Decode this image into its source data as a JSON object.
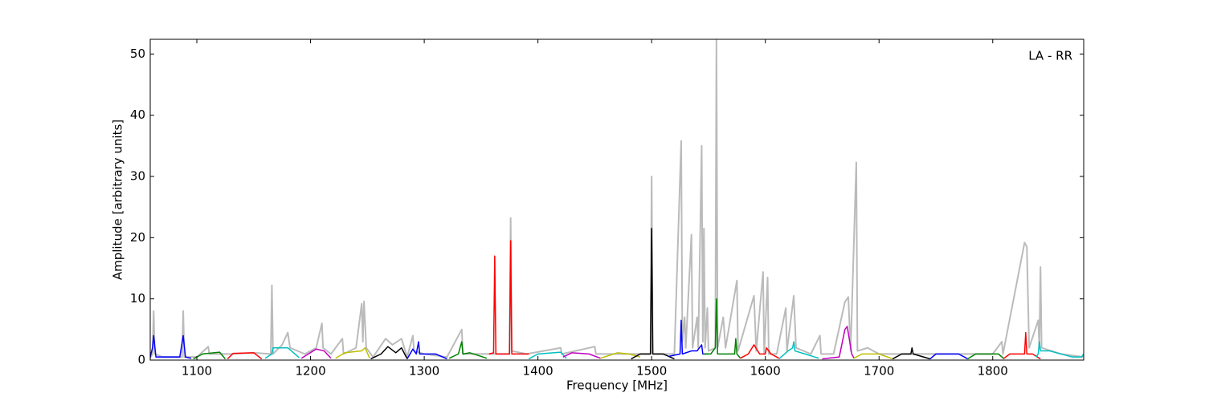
{
  "chart_data": {
    "type": "line",
    "annotation": "LA - RR",
    "xlabel": "Frequency [MHz]",
    "ylabel": "Amplitude [arbitrary units]",
    "xlim": [
      1059,
      1880
    ],
    "ylim": [
      0,
      52.4
    ],
    "xticks": [
      1100,
      1200,
      1300,
      1400,
      1500,
      1600,
      1700,
      1800
    ],
    "yticks": [
      0,
      10,
      20,
      30,
      40,
      50
    ],
    "series": [
      {
        "color": "#bbbbbb",
        "x": [
          1059,
          1061,
          1062,
          1063,
          1070,
          1087,
          1088,
          1089,
          1100,
          1110,
          1111,
          1130,
          1150,
          1165,
          1166,
          1167,
          1175,
          1180,
          1182,
          1195,
          1205,
          1210,
          1211,
          1218,
          1228,
          1229,
          1240,
          1245,
          1246,
          1247,
          1249,
          1255,
          1266,
          1272,
          1280,
          1285,
          1290,
          1291,
          1300,
          1320,
          1333,
          1334,
          1355,
          1375,
          1376,
          1377,
          1390,
          1420,
          1421,
          1450,
          1451,
          1480,
          1499,
          1500,
          1501,
          1520,
          1526,
          1527,
          1529,
          1530,
          1535,
          1536,
          1540,
          1541,
          1544,
          1545,
          1546,
          1547,
          1549,
          1550,
          1556,
          1557,
          1558,
          1563,
          1565,
          1575,
          1576,
          1590,
          1592,
          1598,
          1599,
          1602,
          1603,
          1610,
          1618,
          1619,
          1625,
          1627,
          1640,
          1648,
          1649,
          1660,
          1670,
          1673,
          1675,
          1680,
          1681,
          1690,
          1700,
          1740,
          1800,
          1808,
          1809,
          1828,
          1830,
          1832,
          1840,
          1841,
          1842,
          1843,
          1860,
          1880
        ],
        "values": [
          0.3,
          1,
          8,
          1,
          0.5,
          0.5,
          8,
          0.5,
          0.5,
          2.2,
          1,
          1,
          1.2,
          1,
          12.2,
          1,
          2.5,
          4.5,
          2,
          1,
          2,
          6,
          2,
          1,
          3.5,
          1,
          2,
          9.2,
          3,
          9.6,
          2,
          0.5,
          3.5,
          2.5,
          3.5,
          0.5,
          4,
          1.5,
          1,
          0.5,
          5,
          1,
          1,
          1,
          23.2,
          1.5,
          1,
          2,
          1,
          2.2,
          1,
          1,
          1,
          30,
          1,
          1,
          35.8,
          3,
          7,
          2,
          20.5,
          2,
          7,
          2,
          35,
          3,
          21.5,
          2,
          8.5,
          1.5,
          2,
          52.4,
          2,
          7,
          2,
          13,
          1.5,
          10.5,
          1.5,
          14.4,
          1,
          13.5,
          1,
          1,
          8.5,
          1.5,
          10.5,
          2,
          1,
          4,
          1,
          1,
          9.5,
          10.3,
          1.5,
          32.3,
          1.5,
          2,
          1,
          1,
          1,
          3,
          1,
          19.2,
          18.5,
          2,
          6.5,
          2,
          15.2,
          2,
          1,
          0.5
        ]
      },
      {
        "color": "#0000ff",
        "x": [
          1059,
          1061,
          1062,
          1064,
          1085,
          1088,
          1090,
          1095
        ],
        "values": [
          0.5,
          2,
          4,
          0.5,
          0.5,
          4,
          0.5,
          0.3
        ]
      },
      {
        "color": "#008000",
        "x": [
          1097,
          1105,
          1120,
          1125
        ],
        "values": [
          0.2,
          1,
          1.3,
          0.2
        ]
      },
      {
        "color": "#ff0000",
        "x": [
          1127,
          1132,
          1150,
          1157
        ],
        "values": [
          0.2,
          1.1,
          1.2,
          0.2
        ]
      },
      {
        "color": "#00bfbf",
        "x": [
          1160,
          1166,
          1167,
          1175,
          1180,
          1190
        ],
        "values": [
          0.3,
          1,
          2,
          2,
          2,
          0.4
        ]
      },
      {
        "color": "#bf00bf",
        "x": [
          1192,
          1205,
          1212,
          1218
        ],
        "values": [
          0.3,
          1.8,
          1.5,
          0.3
        ]
      },
      {
        "color": "#bfbf00",
        "x": [
          1222,
          1230,
          1245,
          1248,
          1252
        ],
        "values": [
          0.3,
          1.2,
          1.5,
          2,
          0.3
        ]
      },
      {
        "color": "#000000",
        "x": [
          1253,
          1262,
          1268,
          1275,
          1280,
          1285
        ],
        "values": [
          0.2,
          1,
          2.2,
          1.2,
          2,
          0.2
        ]
      },
      {
        "color": "#0000ff",
        "x": [
          1285,
          1290,
          1293,
          1295,
          1296,
          1310,
          1320
        ],
        "values": [
          0.2,
          1.8,
          1,
          3,
          1,
          1,
          0.2
        ]
      },
      {
        "color": "#008000",
        "x": [
          1322,
          1330,
          1333,
          1334,
          1340,
          1355
        ],
        "values": [
          0.3,
          1,
          3,
          1,
          1.2,
          0.3
        ]
      },
      {
        "color": "#ff0000",
        "x": [
          1357,
          1361,
          1362,
          1363,
          1375,
          1376,
          1377,
          1392
        ],
        "values": [
          1,
          1.2,
          17,
          1,
          1,
          19.5,
          1,
          1
        ]
      },
      {
        "color": "#00bfbf",
        "x": [
          1392,
          1400,
          1420,
          1425
        ],
        "values": [
          0.2,
          1,
          1.3,
          0.3
        ]
      },
      {
        "color": "#bf00bf",
        "x": [
          1422,
          1430,
          1445,
          1455
        ],
        "values": [
          0.5,
          1.2,
          1,
          0.3
        ]
      },
      {
        "color": "#bfbf00",
        "x": [
          1455,
          1470,
          1480,
          1490
        ],
        "values": [
          0.3,
          1.2,
          1,
          0.5
        ]
      },
      {
        "color": "#000000",
        "x": [
          1482,
          1490,
          1499,
          1500,
          1501,
          1510,
          1520
        ],
        "values": [
          0.2,
          1,
          1,
          21.5,
          1,
          1,
          0.2
        ]
      },
      {
        "color": "#0000ff",
        "x": [
          1515,
          1525,
          1526,
          1527,
          1535,
          1540,
          1544,
          1545,
          1550
        ],
        "values": [
          0.6,
          1,
          6.5,
          1,
          1.5,
          1.5,
          2.5,
          1,
          1
        ]
      },
      {
        "color": "#008000",
        "x": [
          1545,
          1552,
          1556,
          1557,
          1558,
          1565,
          1573,
          1574,
          1575,
          1578
        ],
        "values": [
          1,
          1,
          2,
          10,
          1,
          1,
          1,
          3.5,
          1,
          0.3
        ]
      },
      {
        "color": "#ff0000",
        "x": [
          1578,
          1585,
          1590,
          1595,
          1600,
          1601,
          1605,
          1612
        ],
        "values": [
          0.3,
          1,
          2.5,
          1,
          1,
          2,
          1,
          0.3
        ]
      },
      {
        "color": "#00bfbf",
        "x": [
          1612,
          1620,
          1624,
          1625,
          1626,
          1635,
          1647
        ],
        "values": [
          0.2,
          1.5,
          2,
          3,
          1.5,
          1,
          0.3
        ]
      },
      {
        "color": "#bf00bf",
        "x": [
          1650,
          1665,
          1670,
          1672,
          1676,
          1678
        ],
        "values": [
          0.2,
          0.5,
          5,
          5.5,
          1,
          0.3
        ]
      },
      {
        "color": "#bfbf00",
        "x": [
          1678,
          1685,
          1700,
          1712
        ],
        "values": [
          0.3,
          1,
          1,
          0.2
        ]
      },
      {
        "color": "#000000",
        "x": [
          1712,
          1720,
          1728,
          1729,
          1730,
          1745
        ],
        "values": [
          0.2,
          1,
          1,
          2,
          1,
          0.2
        ]
      },
      {
        "color": "#0000ff",
        "x": [
          1745,
          1750,
          1770,
          1778
        ],
        "values": [
          0.2,
          1,
          1,
          0.2
        ]
      },
      {
        "color": "#008000",
        "x": [
          1778,
          1785,
          1805,
          1810
        ],
        "values": [
          0.2,
          1,
          1,
          0.2
        ]
      },
      {
        "color": "#ff0000",
        "x": [
          1810,
          1815,
          1828,
          1829,
          1830,
          1835,
          1842
        ],
        "values": [
          0.3,
          1,
          1,
          4.5,
          1,
          1,
          0.2
        ]
      },
      {
        "color": "#00bfbf",
        "x": [
          1838,
          1840,
          1841,
          1842,
          1850,
          1870,
          1878,
          1880
        ],
        "values": [
          0.5,
          1,
          3,
          1.5,
          1.5,
          0.5,
          0.5,
          1
        ]
      }
    ]
  }
}
